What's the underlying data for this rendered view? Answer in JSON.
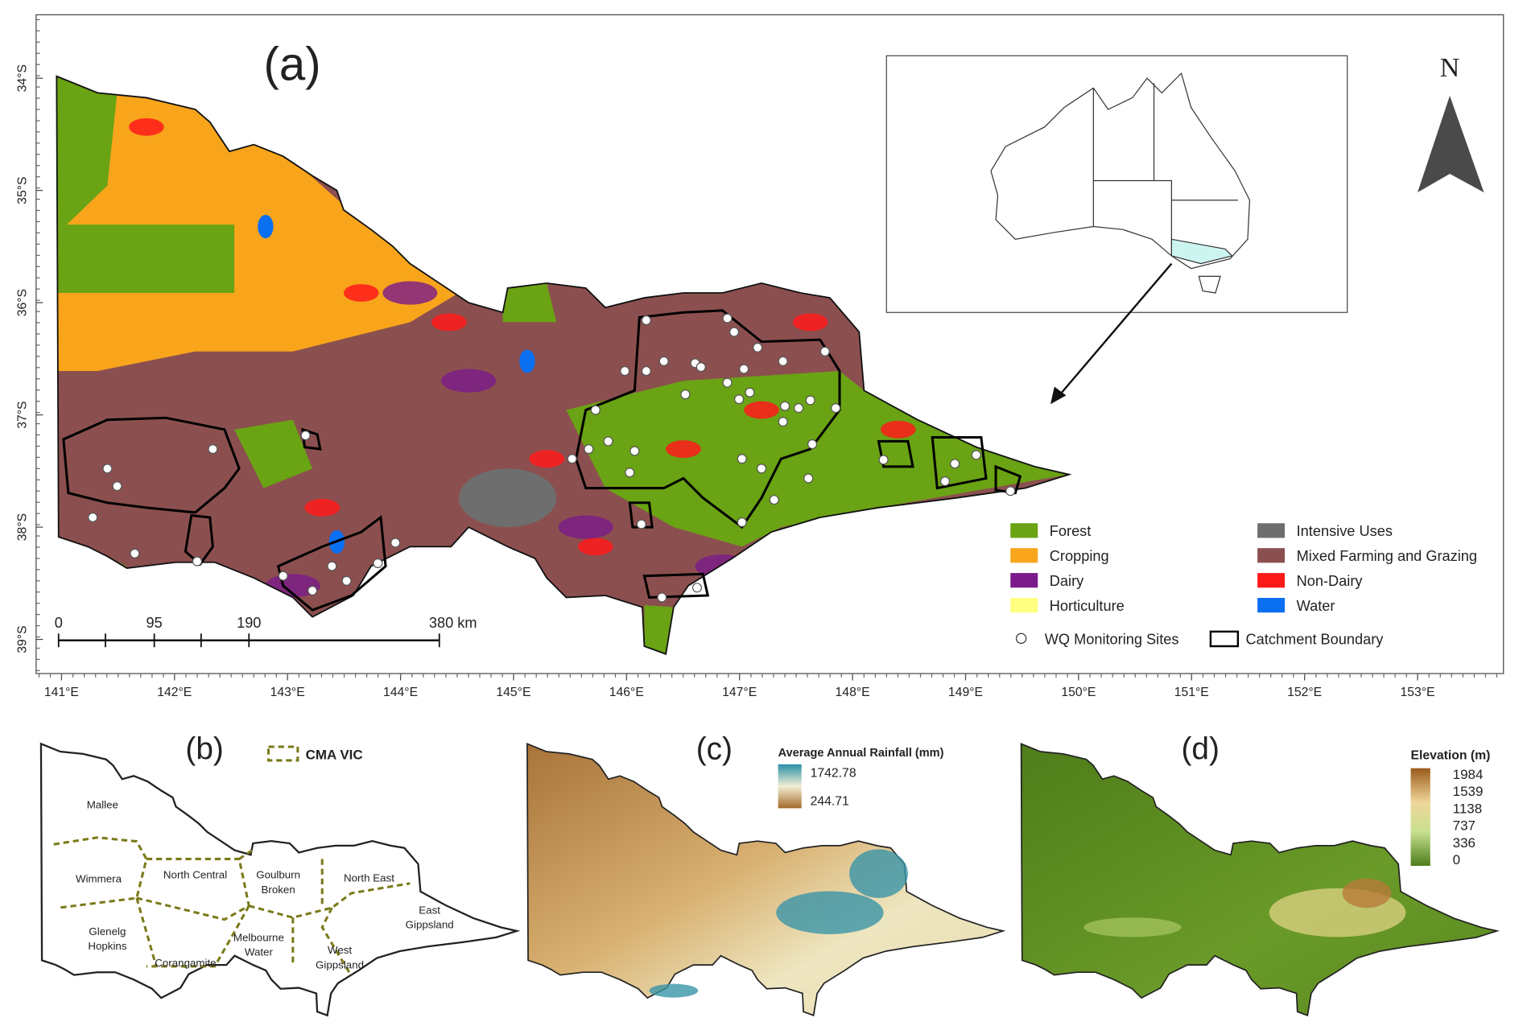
{
  "panel_a": {
    "label": "(a)",
    "north": "N",
    "lat_ticks": [
      "34°S",
      "35°S",
      "36°S",
      "37°S",
      "38°S",
      "39°S"
    ],
    "lon_ticks": [
      "141°E",
      "142°E",
      "143°E",
      "144°E",
      "145°E",
      "146°E",
      "147°E",
      "148°E",
      "149°E",
      "150°E",
      "151°E",
      "152°E",
      "153°E"
    ],
    "scale_bar": [
      "0",
      "95",
      "190",
      "380 km"
    ],
    "legend": {
      "land_use": [
        {
          "name": "Forest",
          "color": "#6aa314"
        },
        {
          "name": "Cropping",
          "color": "#f8a51c"
        },
        {
          "name": "Dairy",
          "color": "#7b1a8a"
        },
        {
          "name": "Horticulture",
          "color": "#ffff80"
        },
        {
          "name": "Intensive Uses",
          "color": "#6e6e6e"
        },
        {
          "name": "Mixed Farming and Grazing",
          "color": "#8c4f4f"
        },
        {
          "name": "Non-Dairy",
          "color": "#ff1a1a"
        },
        {
          "name": "Water",
          "color": "#0a6ff0"
        }
      ],
      "sites": "WQ Monitoring Sites",
      "catchment": "Catchment Boundary"
    }
  },
  "panel_b": {
    "label": "(b)",
    "legend": "CMA VIC",
    "regions": [
      [
        "Mallee"
      ],
      [
        "Wimmera"
      ],
      [
        "North Central"
      ],
      [
        "Goulburn",
        "Broken"
      ],
      [
        "North East"
      ],
      [
        "East",
        "Gippsland"
      ],
      [
        "Glenelg",
        "Hopkins"
      ],
      [
        "Melbourne",
        "Water"
      ],
      [
        "West",
        "Gippsland"
      ],
      [
        "Corangamite"
      ]
    ]
  },
  "panel_c": {
    "label": "(c)",
    "legend_title": "Average Annual Rainfall (mm)",
    "max": "1742.78",
    "min": "244.71"
  },
  "panel_d": {
    "label": "(d)",
    "legend_title": "Elevation (m)",
    "ticks": [
      "1984",
      "1539",
      "1138",
      "737",
      "336",
      "0"
    ]
  }
}
